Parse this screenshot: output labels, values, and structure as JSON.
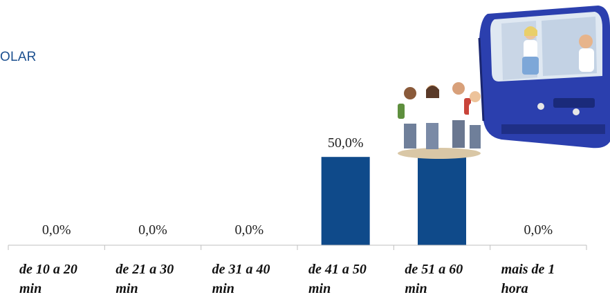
{
  "chart_data": {
    "type": "bar",
    "title": "OLAR",
    "categories": [
      "de 10 a 20 min",
      "de 21 a 30 min",
      "de 31 a 40 min",
      "de 41 a 50 min",
      "de 51 a 60 min",
      "mais de 1 hora"
    ],
    "category_lines": [
      [
        "de 10 a 20",
        "min"
      ],
      [
        "de 21 a 30",
        "min"
      ],
      [
        "de 31 a 40",
        "min"
      ],
      [
        "de 41 a 50",
        "min"
      ],
      [
        "de 51 a 60",
        "min"
      ],
      [
        "mais de 1",
        "hora"
      ]
    ],
    "values": [
      0,
      0,
      0,
      50,
      50,
      0
    ],
    "data_labels": [
      "0,0%",
      "0,0%",
      "0,0%",
      "50,0%",
      "",
      "0,0%"
    ],
    "ylim": [
      0,
      100
    ],
    "bar_color": "#0f4a8a",
    "axis_color": "#bfbfbf",
    "title_color": "#1b4f8f"
  },
  "decor": {
    "illustration": "school-bus-with-students"
  }
}
